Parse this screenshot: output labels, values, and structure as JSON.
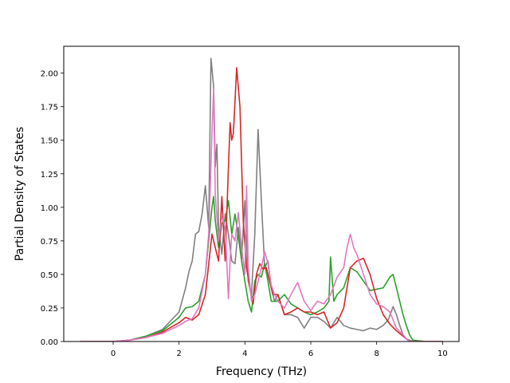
{
  "chart_data": {
    "type": "line",
    "title": "",
    "xlabel": "Frequency (THz)",
    "ylabel": "Partial Density of States",
    "xlim": [
      -1.5,
      10.5
    ],
    "ylim": [
      0.0,
      2.2
    ],
    "xticks": [
      0,
      2,
      4,
      6,
      8,
      10
    ],
    "xtick_labels": [
      "0",
      "2",
      "4",
      "6",
      "8",
      "10"
    ],
    "yticks": [
      0.0,
      0.25,
      0.5,
      0.75,
      1.0,
      1.25,
      1.5,
      1.75,
      2.0
    ],
    "ytick_labels": [
      "0.00",
      "0.25",
      "0.50",
      "0.75",
      "1.00",
      "1.25",
      "1.50",
      "1.75",
      "2.00"
    ],
    "grid": false,
    "legend": "none",
    "series": [
      {
        "color": "#808080",
        "x": [
          -1.0,
          0.0,
          0.5,
          1.0,
          1.5,
          2.0,
          2.2,
          2.3,
          2.4,
          2.5,
          2.6,
          2.7,
          2.8,
          2.9,
          2.97,
          3.05,
          3.1,
          3.15,
          3.2,
          3.3,
          3.4,
          3.5,
          3.6,
          3.7,
          3.8,
          3.9,
          4.0,
          4.1,
          4.2,
          4.3,
          4.4,
          4.5,
          4.6,
          4.7,
          4.8,
          4.9,
          5.0,
          5.2,
          5.4,
          5.6,
          5.8,
          6.0,
          6.2,
          6.4,
          6.6,
          6.8,
          7.0,
          7.2,
          7.4,
          7.6,
          7.8,
          8.0,
          8.2,
          8.35,
          8.5,
          8.6,
          8.7,
          8.8,
          8.9,
          9.0,
          9.1,
          9.5,
          10.0
        ],
        "y": [
          0.0,
          0.0,
          0.01,
          0.04,
          0.09,
          0.22,
          0.4,
          0.52,
          0.6,
          0.8,
          0.82,
          0.95,
          1.16,
          0.85,
          2.11,
          1.9,
          1.3,
          1.47,
          0.85,
          0.65,
          0.95,
          0.8,
          0.6,
          0.58,
          0.85,
          0.62,
          1.05,
          0.45,
          0.35,
          0.8,
          1.58,
          1.05,
          0.55,
          0.6,
          0.4,
          0.3,
          0.35,
          0.2,
          0.2,
          0.18,
          0.1,
          0.18,
          0.18,
          0.15,
          0.1,
          0.18,
          0.12,
          0.1,
          0.09,
          0.08,
          0.1,
          0.09,
          0.12,
          0.16,
          0.26,
          0.2,
          0.12,
          0.05,
          0.02,
          0.01,
          0.0,
          0.0,
          0.0
        ]
      },
      {
        "color": "#2ca02c",
        "x": [
          -1.0,
          0.0,
          0.5,
          1.0,
          1.5,
          2.0,
          2.2,
          2.4,
          2.6,
          2.8,
          2.9,
          3.0,
          3.05,
          3.1,
          3.2,
          3.3,
          3.4,
          3.5,
          3.6,
          3.7,
          3.8,
          3.9,
          4.0,
          4.1,
          4.2,
          4.3,
          4.4,
          4.5,
          4.6,
          4.7,
          4.8,
          5.0,
          5.2,
          5.4,
          5.6,
          5.8,
          6.0,
          6.2,
          6.4,
          6.55,
          6.6,
          6.7,
          6.8,
          7.0,
          7.2,
          7.4,
          7.6,
          7.8,
          8.0,
          8.2,
          8.4,
          8.5,
          8.6,
          8.7,
          8.8,
          8.9,
          9.0,
          9.1,
          9.5,
          10.0
        ],
        "y": [
          0.0,
          0.0,
          0.01,
          0.04,
          0.08,
          0.18,
          0.25,
          0.26,
          0.3,
          0.5,
          0.75,
          1.0,
          1.08,
          0.9,
          0.7,
          0.88,
          0.9,
          1.05,
          0.8,
          0.95,
          0.78,
          0.6,
          0.45,
          0.3,
          0.22,
          0.45,
          0.5,
          0.48,
          0.58,
          0.45,
          0.3,
          0.3,
          0.35,
          0.28,
          0.25,
          0.22,
          0.2,
          0.22,
          0.25,
          0.3,
          0.63,
          0.3,
          0.35,
          0.4,
          0.55,
          0.52,
          0.45,
          0.38,
          0.39,
          0.4,
          0.48,
          0.5,
          0.4,
          0.3,
          0.2,
          0.12,
          0.05,
          0.01,
          0.0,
          0.0
        ]
      },
      {
        "color": "#d62728",
        "x": [
          -1.0,
          0.0,
          0.5,
          1.0,
          1.5,
          2.0,
          2.2,
          2.4,
          2.6,
          2.8,
          3.0,
          3.1,
          3.2,
          3.3,
          3.4,
          3.5,
          3.55,
          3.6,
          3.65,
          3.75,
          3.85,
          3.95,
          4.05,
          4.15,
          4.25,
          4.35,
          4.45,
          4.55,
          4.65,
          4.75,
          4.85,
          5.0,
          5.2,
          5.4,
          5.6,
          5.8,
          6.0,
          6.2,
          6.4,
          6.6,
          6.8,
          7.0,
          7.2,
          7.4,
          7.6,
          7.8,
          8.0,
          8.2,
          8.4,
          8.6,
          8.8,
          8.9,
          9.0,
          9.5,
          10.0
        ],
        "y": [
          0.0,
          0.0,
          0.01,
          0.03,
          0.07,
          0.14,
          0.18,
          0.16,
          0.2,
          0.35,
          0.8,
          0.7,
          0.6,
          1.08,
          0.6,
          1.3,
          1.63,
          1.5,
          1.55,
          2.04,
          1.75,
          0.9,
          0.55,
          0.4,
          0.28,
          0.5,
          0.58,
          0.54,
          0.55,
          0.45,
          0.35,
          0.35,
          0.2,
          0.22,
          0.25,
          0.22,
          0.22,
          0.2,
          0.22,
          0.1,
          0.14,
          0.25,
          0.55,
          0.6,
          0.62,
          0.5,
          0.32,
          0.2,
          0.13,
          0.08,
          0.04,
          0.02,
          0.0,
          0.0,
          0.0
        ]
      },
      {
        "color": "#e377c2",
        "x": [
          -1.0,
          0.0,
          0.5,
          1.0,
          1.5,
          2.0,
          2.2,
          2.4,
          2.6,
          2.8,
          2.9,
          3.0,
          3.05,
          3.1,
          3.2,
          3.3,
          3.4,
          3.5,
          3.55,
          3.6,
          3.7,
          3.8,
          3.9,
          4.0,
          4.05,
          4.1,
          4.2,
          4.3,
          4.4,
          4.5,
          4.6,
          4.7,
          4.8,
          4.9,
          5.0,
          5.2,
          5.4,
          5.6,
          5.8,
          6.0,
          6.2,
          6.4,
          6.6,
          6.8,
          7.0,
          7.1,
          7.2,
          7.3,
          7.4,
          7.6,
          7.8,
          8.0,
          8.2,
          8.4,
          8.6,
          8.8,
          8.9,
          9.0,
          9.5,
          10.0
        ],
        "y": [
          0.0,
          0.0,
          0.01,
          0.03,
          0.06,
          0.12,
          0.15,
          0.17,
          0.25,
          0.5,
          0.8,
          1.55,
          1.88,
          1.1,
          0.75,
          0.93,
          0.85,
          0.32,
          0.6,
          0.8,
          0.75,
          0.96,
          0.7,
          0.5,
          1.16,
          0.55,
          0.3,
          0.35,
          0.45,
          0.55,
          0.67,
          0.58,
          0.42,
          0.35,
          0.3,
          0.25,
          0.35,
          0.44,
          0.3,
          0.23,
          0.3,
          0.28,
          0.35,
          0.48,
          0.55,
          0.7,
          0.8,
          0.7,
          0.65,
          0.5,
          0.35,
          0.28,
          0.26,
          0.22,
          0.1,
          0.05,
          0.02,
          0.0,
          0.0,
          0.0
        ]
      }
    ]
  }
}
